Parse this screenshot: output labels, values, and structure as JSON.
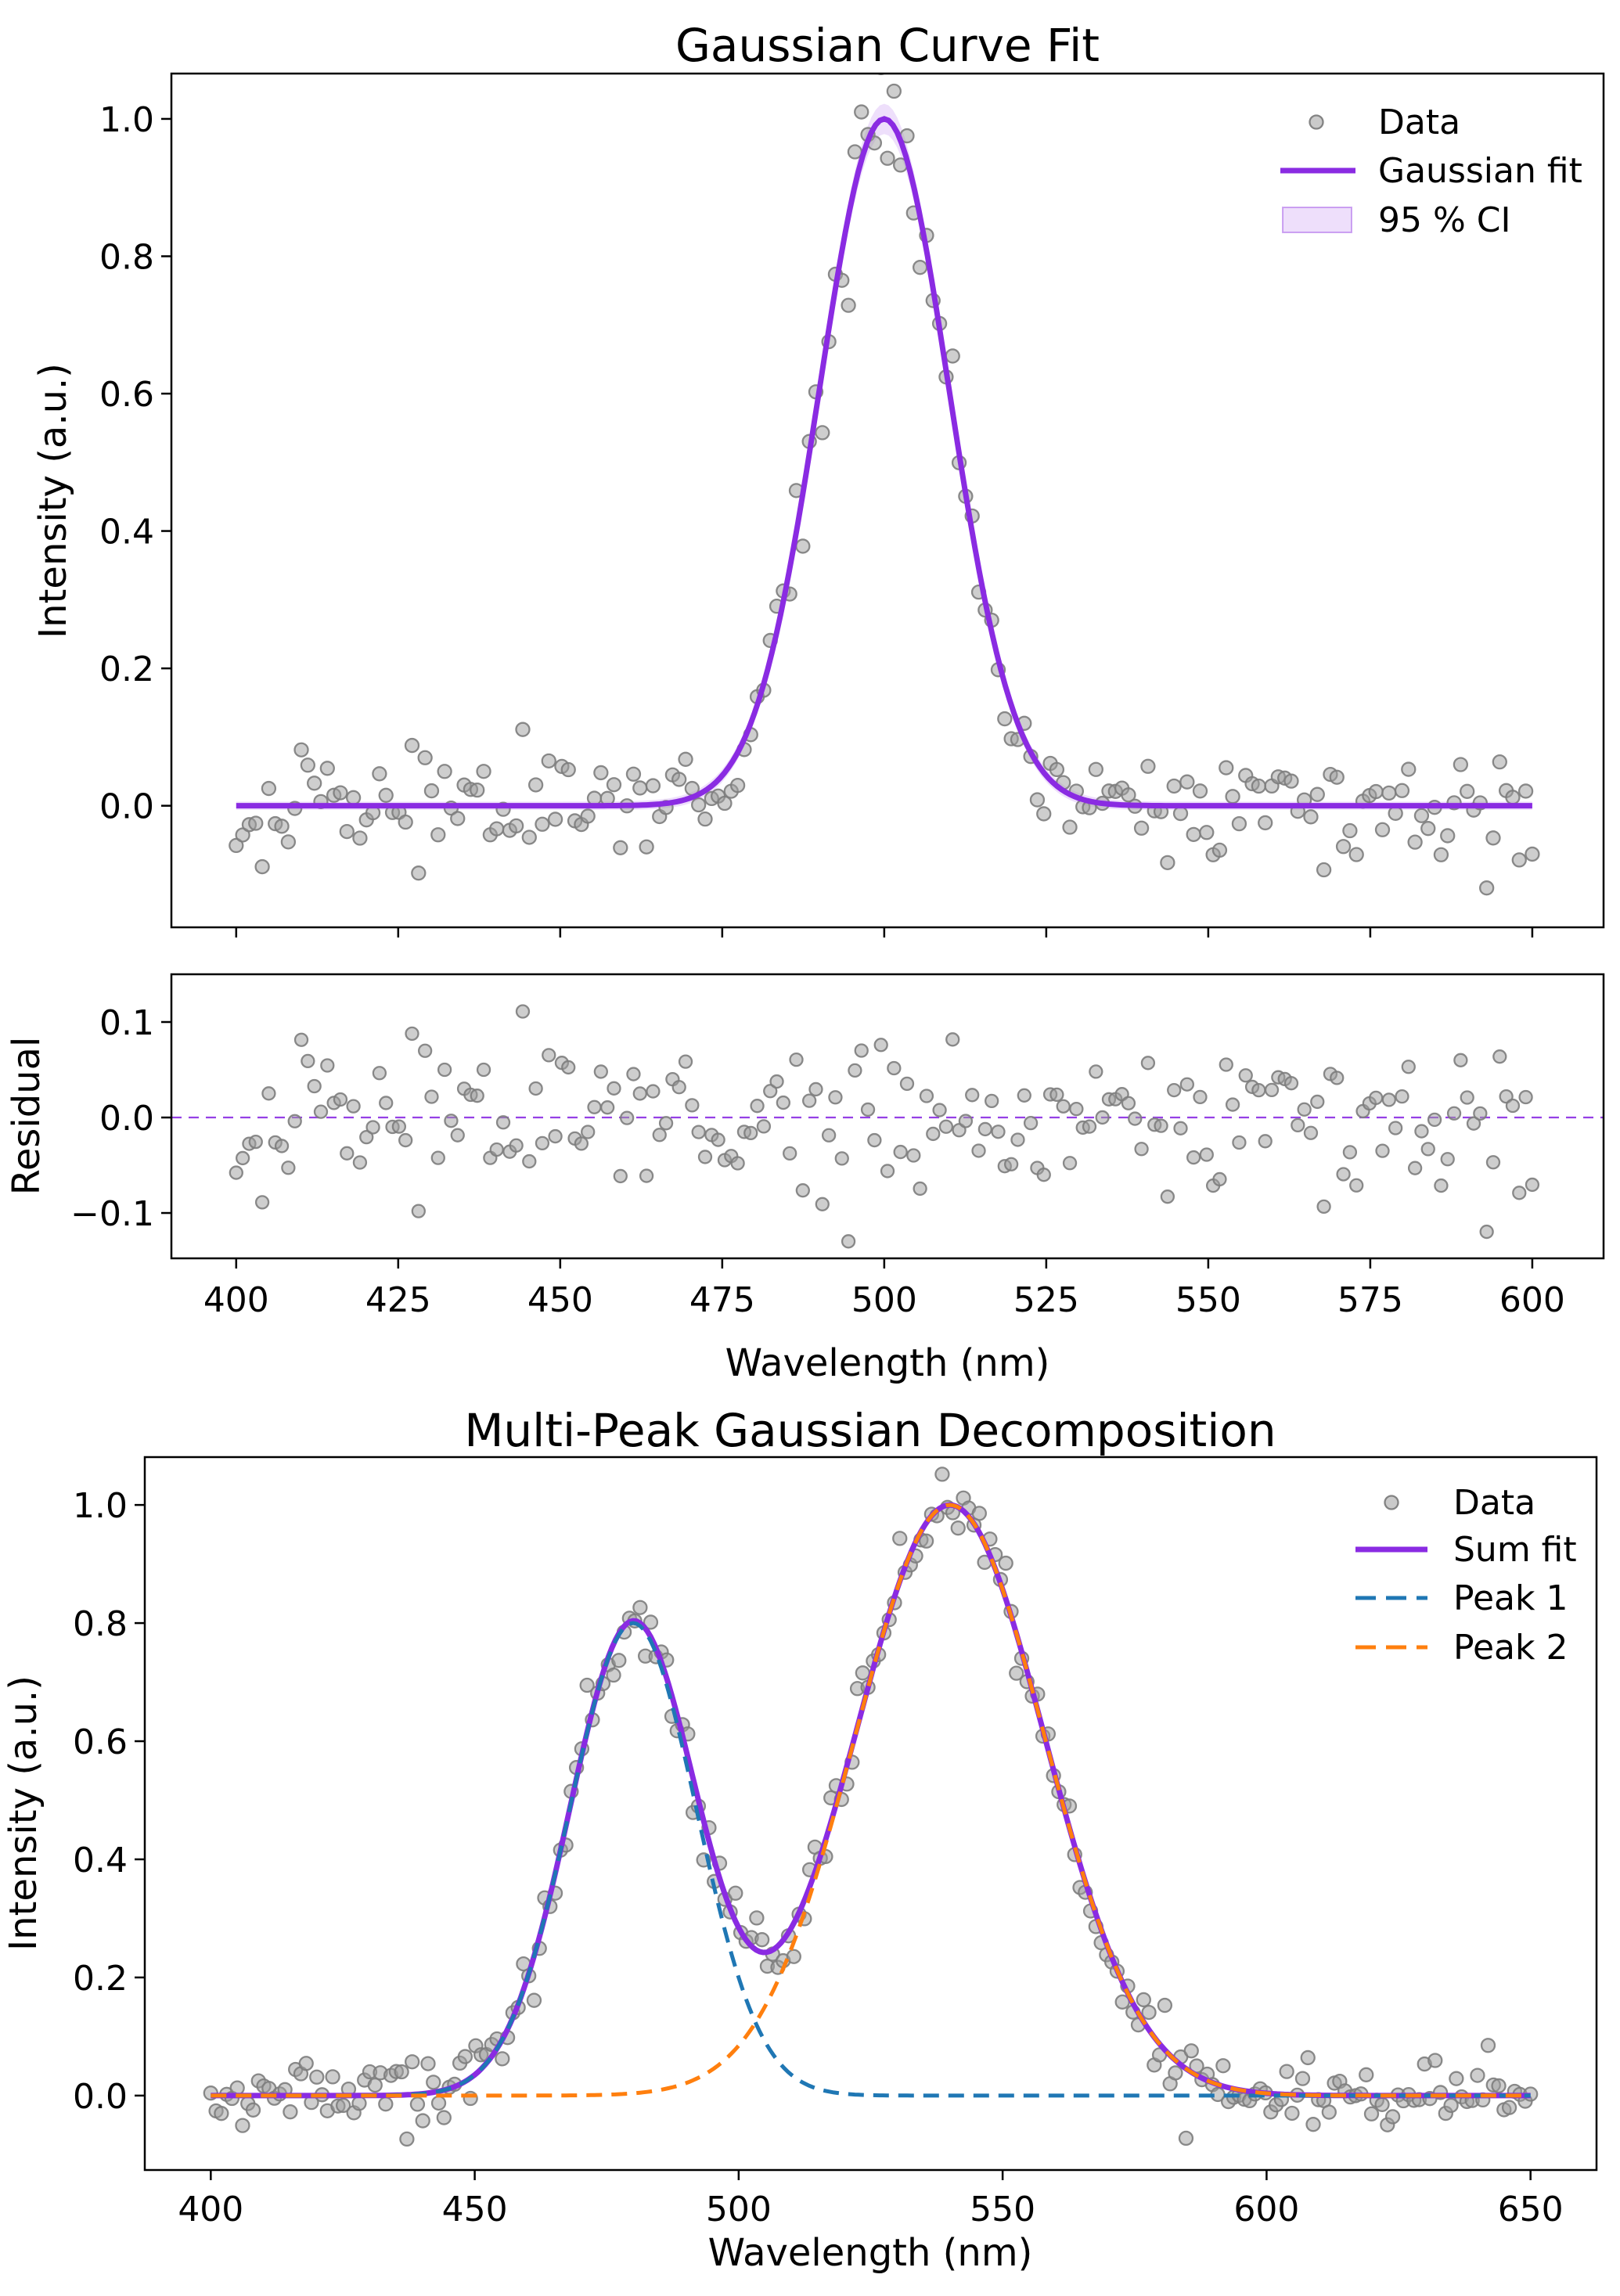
{
  "page": {
    "background": "#ffffff"
  },
  "chart_data": [
    {
      "id": "gaussian_fit_main",
      "type": "scatter",
      "title": "Gaussian Curve Fit",
      "xlabel": "",
      "ylabel": "Intensity (a.u.)",
      "xlim": [
        390,
        611
      ],
      "ylim": [
        -0.177,
        1.066
      ],
      "xticks": [
        400,
        425,
        450,
        475,
        500,
        525,
        550,
        575,
        600
      ],
      "show_xtick_labels": false,
      "yticks": [
        0.0,
        0.2,
        0.4,
        0.6,
        0.8,
        1.0
      ],
      "grid": false,
      "legend": {
        "position": "upper right",
        "frame": false,
        "entries": [
          {
            "label": "Data",
            "type": "marker"
          },
          {
            "label": "Gaussian fit",
            "type": "line"
          },
          {
            "label": "95 % CI",
            "type": "patch"
          }
        ]
      },
      "fit_model": {
        "shape": "gaussian",
        "amplitude": 1.0,
        "center": 500.0,
        "sigma": 10.0
      },
      "ci_band": {
        "level": "95 % CI",
        "base_halfwidth": 0.006,
        "peak_halfwidth_extra": 0.016,
        "halfwidth_sigma": 14
      },
      "scatter_points": {
        "n": 200,
        "x_start": 400,
        "x_end": 600,
        "noise_sd": 0.045,
        "seed": 42,
        "generator": "model_plus_gaussian_noise"
      },
      "colors": {
        "fit": "#8a2be2",
        "ci_fill": "#8a2be2",
        "marker_fill": "#9e9e9e",
        "marker_edge": "#7d7d7d"
      }
    },
    {
      "id": "gaussian_fit_residuals",
      "type": "scatter",
      "title": "",
      "xlabel": "Wavelength (nm)",
      "ylabel": "Residual",
      "xlim": [
        390,
        611
      ],
      "ylim": [
        -0.1475,
        0.15
      ],
      "xticks": [
        400,
        425,
        450,
        475,
        500,
        525,
        550,
        575,
        600
      ],
      "show_xtick_labels": true,
      "yticks": [
        -0.1,
        0.0,
        0.1
      ],
      "grid": false,
      "zero_line": {
        "style": "dashed",
        "color": "#8a2be2",
        "y": 0.0
      },
      "residuals": "data_minus_fit_from_gaussian_fit_main",
      "colors": {
        "marker_fill": "#9e9e9e",
        "marker_edge": "#7d7d7d"
      }
    },
    {
      "id": "multi_peak_decomposition",
      "type": "scatter",
      "title": "Multi-Peak Gaussian Decomposition",
      "xlabel": "Wavelength (nm)",
      "ylabel": "Intensity (a.u.)",
      "xlim": [
        387.5,
        662.5
      ],
      "ylim": [
        -0.126,
        1.081
      ],
      "xticks": [
        400,
        450,
        500,
        550,
        600,
        650
      ],
      "show_xtick_labels": true,
      "yticks": [
        0.0,
        0.2,
        0.4,
        0.6,
        0.8,
        1.0
      ],
      "grid": false,
      "legend": {
        "position": "upper right",
        "frame": false,
        "entries": [
          {
            "label": "Data",
            "type": "marker"
          },
          {
            "label": "Sum fit",
            "type": "line"
          },
          {
            "label": "Peak 1",
            "type": "dashed"
          },
          {
            "label": "Peak 2",
            "type": "dashed"
          }
        ]
      },
      "peaks": [
        {
          "name": "Peak 1",
          "amplitude": 0.8,
          "center": 480.0,
          "sigma": 12.0,
          "color": "#1f77b4"
        },
        {
          "name": "Peak 2",
          "amplitude": 1.0,
          "center": 540.0,
          "sigma": 18.0,
          "color": "#ff7f0e"
        }
      ],
      "sum_fit_color": "#8a2be2",
      "scatter_points": {
        "n": 250,
        "x_start": 400,
        "x_end": 650,
        "noise_sd": 0.03,
        "seed": 7,
        "generator": "sum_of_peaks_plus_gaussian_noise"
      },
      "colors": {
        "marker_fill": "#9e9e9e",
        "marker_edge": "#7d7d7d"
      }
    }
  ]
}
